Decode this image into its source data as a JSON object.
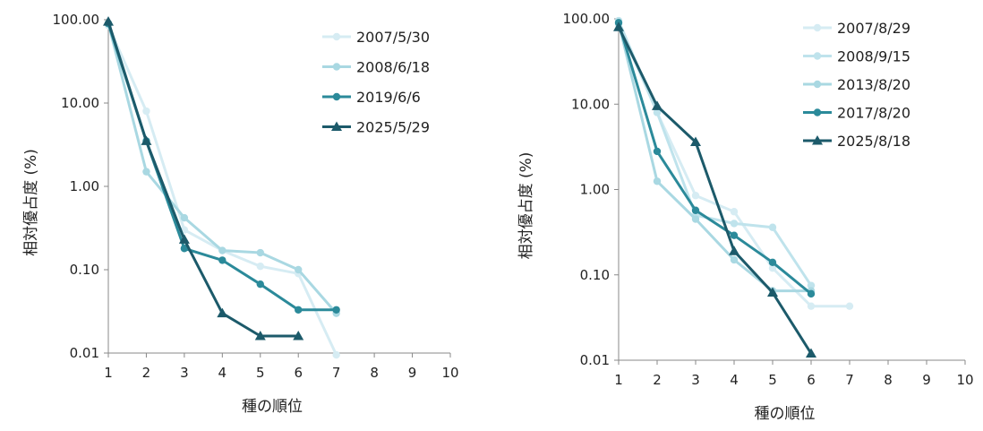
{
  "chart_data": [
    {
      "type": "line",
      "xlabel": "種の順位",
      "ylabel": "相対優占度 (%)",
      "yscale": "log",
      "ylim": [
        0.01,
        100
      ],
      "xlim": [
        1,
        10
      ],
      "x_ticks": [
        "1",
        "2",
        "3",
        "4",
        "5",
        "6",
        "7",
        "8",
        "9",
        "10"
      ],
      "y_ticks": [
        "0.01",
        "0.10",
        "1.00",
        "10.00",
        "100.00"
      ],
      "grid": false,
      "legend": "top-right",
      "series": [
        {
          "name": "2007/5/30",
          "color": "#d6ecf3",
          "marker": "circle",
          "x": [
            1,
            2,
            3,
            4,
            5,
            6,
            7
          ],
          "y": [
            85,
            8.0,
            0.3,
            0.17,
            0.11,
            0.09,
            0.0095
          ]
        },
        {
          "name": "2008/6/18",
          "color": "#a9d8e2",
          "marker": "circle",
          "x": [
            1,
            2,
            3,
            4,
            5,
            6,
            7
          ],
          "y": [
            90,
            1.5,
            0.42,
            0.17,
            0.16,
            0.1,
            0.03
          ]
        },
        {
          "name": "2019/6/6",
          "color": "#2b8a9a",
          "marker": "circle",
          "x": [
            1,
            2,
            3,
            4,
            5,
            6,
            7
          ],
          "y": [
            90,
            3.5,
            0.18,
            0.13,
            0.067,
            0.033,
            0.033
          ]
        },
        {
          "name": "2025/5/29",
          "color": "#1c5a6a",
          "marker": "triangle",
          "x": [
            1,
            2,
            3,
            4,
            5,
            6
          ],
          "y": [
            95,
            3.5,
            0.23,
            0.03,
            0.016,
            0.016
          ]
        }
      ]
    },
    {
      "type": "line",
      "xlabel": "種の順位",
      "ylabel": "相対優占度 (%)",
      "yscale": "log",
      "ylim": [
        0.01,
        100
      ],
      "xlim": [
        1,
        10
      ],
      "x_ticks": [
        "1",
        "2",
        "3",
        "4",
        "5",
        "6",
        "7",
        "8",
        "9",
        "10"
      ],
      "y_ticks": [
        "0.01",
        "0.10",
        "1.00",
        "10.00",
        "100.00"
      ],
      "grid": false,
      "legend": "top-right",
      "series": [
        {
          "name": "2007/8/29",
          "color": "#d6ecf3",
          "marker": "circle",
          "x": [
            1,
            2,
            3,
            4,
            5,
            6,
            7
          ],
          "y": [
            85,
            8.0,
            0.85,
            0.55,
            0.12,
            0.043,
            0.043
          ]
        },
        {
          "name": "2008/9/15",
          "color": "#bfe3ec",
          "marker": "circle",
          "x": [
            1,
            2,
            3,
            4,
            5,
            6
          ],
          "y": [
            95,
            8.0,
            0.5,
            0.4,
            0.36,
            0.075
          ]
        },
        {
          "name": "2013/8/20",
          "color": "#a9d8e2",
          "marker": "circle",
          "x": [
            1,
            2,
            3,
            4,
            5,
            6
          ],
          "y": [
            90,
            1.25,
            0.45,
            0.15,
            0.065,
            0.065
          ]
        },
        {
          "name": "2017/8/20",
          "color": "#2b8a9a",
          "marker": "circle",
          "x": [
            1,
            2,
            3,
            4,
            5,
            6
          ],
          "y": [
            90,
            2.8,
            0.57,
            0.29,
            0.14,
            0.06
          ]
        },
        {
          "name": "2025/8/18",
          "color": "#1c5a6a",
          "marker": "triangle",
          "x": [
            1,
            2,
            3,
            4,
            5,
            6
          ],
          "y": [
            80,
            9.5,
            3.6,
            0.19,
            0.062,
            0.012
          ]
        }
      ]
    }
  ]
}
